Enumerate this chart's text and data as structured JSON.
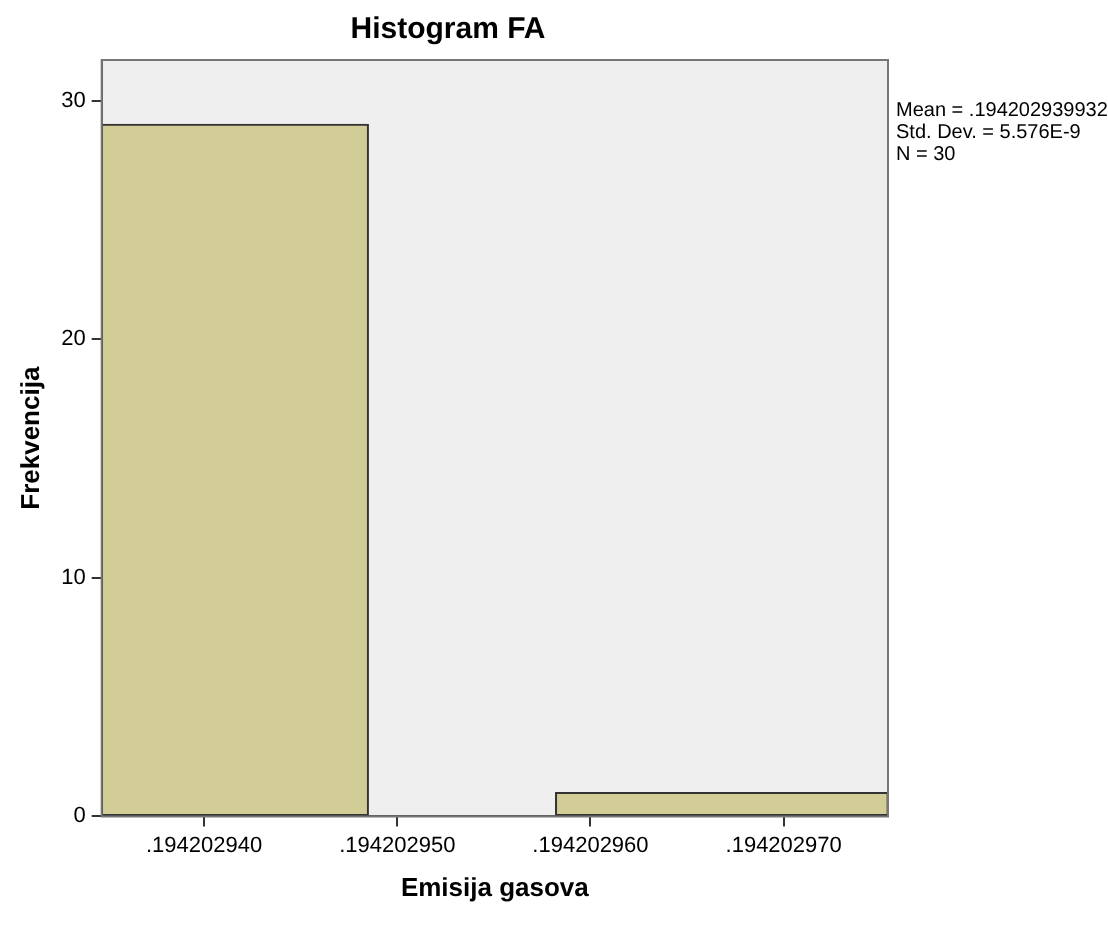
{
  "chart_data": {
    "type": "histogram",
    "title": "Histogram FA",
    "xlabel": "Emisija gasova",
    "ylabel": "Frekvencija",
    "bins": [
      0.1942029347,
      0.1942029485,
      0.1942029582,
      0.1942029754
    ],
    "values": [
      29,
      0,
      1
    ],
    "color": "#d2cd96",
    "xlim": [
      0.1942029347,
      0.1942029754
    ],
    "xticks": [
      {
        "value": 0.19420294,
        "label": ".194202940"
      },
      {
        "value": 0.19420295,
        "label": ".194202950"
      },
      {
        "value": 0.19420296,
        "label": ".194202960"
      },
      {
        "value": 0.19420297,
        "label": ".194202970"
      }
    ],
    "ylim": [
      0,
      31.7
    ],
    "yticks": [
      0,
      10,
      20,
      30
    ],
    "grid": false,
    "legend": false,
    "annotations": [
      "Mean = .194202939932",
      "Std. Dev. = 5.576E-9",
      "N = 30"
    ]
  }
}
